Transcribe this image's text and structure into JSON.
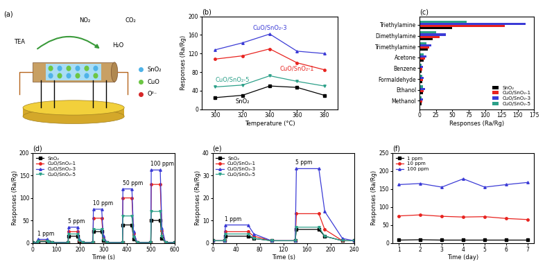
{
  "diagram": {
    "title": "(a)",
    "molecules": {
      "target": "TEA",
      "products": [
        "NO₂",
        "CO₂",
        "H₂O"
      ]
    },
    "species": [
      {
        "name": "SnO₂",
        "color": "#4fb3e8"
      },
      {
        "name": "CuO",
        "color": "#6cc644"
      },
      {
        "name": "O²⁻",
        "color": "#d62728"
      }
    ]
  },
  "chart_data": [
    {
      "type": "line",
      "title": "(b)",
      "xlabel": "Temperature (°C)",
      "ylabel": "Responses (Ra/Rg)",
      "x": [
        300,
        320,
        340,
        360,
        380
      ],
      "xlim": [
        290,
        390
      ],
      "xticks": [
        300,
        320,
        340,
        360,
        380
      ],
      "ylim": [
        0,
        200
      ],
      "yticks": [
        0,
        40,
        80,
        120,
        160,
        200
      ],
      "series": [
        {
          "name": "SnO₂",
          "color": "#000000",
          "marker": "square",
          "values": [
            25,
            30,
            50,
            47,
            30
          ]
        },
        {
          "name": "CuO/SnO₂-1",
          "color": "#e8231f",
          "marker": "circle",
          "values": [
            108,
            115,
            130,
            100,
            85
          ]
        },
        {
          "name": "CuO/SnO₂-3",
          "color": "#3b3bd6",
          "marker": "triangle_up",
          "values": [
            128,
            143,
            162,
            125,
            120
          ]
        },
        {
          "name": "CuO/SnO₂-5",
          "color": "#2ca089",
          "marker": "triangle_down",
          "values": [
            48,
            52,
            72,
            60,
            50
          ]
        }
      ]
    },
    {
      "type": "bar",
      "orientation": "horizontal",
      "title": "(c)",
      "xlabel": "Responses (Ra/Rg)",
      "categories": [
        "Methanol",
        "Ethanol",
        "Formaldehyde",
        "Benzene",
        "Acetone",
        "Trimethylamine",
        "Dimethylamine",
        "Triethylamine"
      ],
      "xlim": [
        0,
        175
      ],
      "xticks": [
        0,
        25,
        50,
        75,
        100,
        125,
        150,
        175
      ],
      "legend": "lower right",
      "series": [
        {
          "name": "SnO₂",
          "color": "#000000",
          "values": [
            3,
            5,
            4,
            3,
            6,
            12,
            20,
            50
          ]
        },
        {
          "name": "CuO/SnO₂-1",
          "color": "#e8231f",
          "values": [
            4,
            6,
            5,
            4,
            8,
            15,
            30,
            130
          ]
        },
        {
          "name": "CuO/SnO₂-3",
          "color": "#3b3bd6",
          "values": [
            5,
            8,
            6,
            5,
            10,
            18,
            40,
            162
          ]
        },
        {
          "name": "CuO/SnO₂-5",
          "color": "#2ca089",
          "values": [
            3,
            5,
            4,
            3,
            6,
            10,
            25,
            72
          ]
        }
      ]
    },
    {
      "type": "line",
      "title": "(d)",
      "xlabel": "Time (s)",
      "ylabel": "Responses (Ra/Rg)",
      "x": [
        0,
        20,
        22,
        60,
        67,
        82,
        150,
        152,
        190,
        197,
        212,
        255,
        257,
        292,
        299,
        314,
        380,
        382,
        420,
        427,
        442,
        500,
        502,
        540,
        547,
        562,
        600
      ],
      "xlim": [
        0,
        600
      ],
      "xticks": [
        0,
        100,
        200,
        300,
        400,
        500,
        600
      ],
      "ylim": [
        0,
        200
      ],
      "yticks": [
        0,
        50,
        100,
        150,
        200
      ],
      "legend": "upper left",
      "annotations": [
        {
          "text": "1 ppm",
          "x": 20
        },
        {
          "text": "5 ppm",
          "x": 150
        },
        {
          "text": "10 ppm",
          "x": 255
        },
        {
          "text": "50 ppm",
          "x": 380
        },
        {
          "text": "100 ppm",
          "x": 500
        }
      ],
      "series": [
        {
          "name": "SnO₂",
          "color": "#000000",
          "marker": "square",
          "values": [
            1,
            1,
            3,
            3,
            2,
            1,
            1,
            15,
            15,
            4,
            1,
            1,
            25,
            25,
            6,
            1,
            1,
            40,
            40,
            9,
            1,
            1,
            50,
            50,
            11,
            1,
            1
          ]
        },
        {
          "name": "CuO/SnO₂-1",
          "color": "#e8231f",
          "marker": "circle",
          "values": [
            1,
            1,
            5,
            5,
            2,
            1,
            1,
            25,
            25,
            6,
            1,
            1,
            55,
            55,
            12,
            1,
            1,
            100,
            100,
            21,
            1,
            1,
            130,
            130,
            27,
            1,
            1
          ]
        },
        {
          "name": "CuO/SnO₂-3",
          "color": "#3b3bd6",
          "marker": "triangle_up",
          "values": [
            1,
            1,
            8,
            8,
            3,
            1,
            1,
            35,
            35,
            8,
            1,
            1,
            75,
            75,
            16,
            1,
            1,
            120,
            120,
            25,
            1,
            1,
            162,
            162,
            33,
            1,
            1
          ]
        },
        {
          "name": "CuO/SnO₂-5",
          "color": "#2ca089",
          "marker": "triangle_down",
          "values": [
            1,
            1,
            4,
            4,
            2,
            1,
            1,
            20,
            20,
            5,
            1,
            1,
            30,
            30,
            7,
            1,
            1,
            60,
            60,
            13,
            1,
            1,
            70,
            70,
            15,
            1,
            1
          ]
        }
      ]
    },
    {
      "type": "line",
      "title": "(e)",
      "xlabel": "Time (s)",
      "ylabel": "Responses (Ra/Rg)",
      "x": [
        0,
        20,
        22,
        60,
        70,
        100,
        140,
        142,
        180,
        190,
        220,
        240
      ],
      "xlim": [
        0,
        240
      ],
      "xticks": [
        0,
        40,
        80,
        120,
        160,
        200,
        240
      ],
      "ylim": [
        0,
        40
      ],
      "yticks": [
        0,
        10,
        20,
        30,
        40
      ],
      "legend": "upper left",
      "annotations": [
        {
          "text": "1 ppm",
          "x": 20
        },
        {
          "text": "5 ppm",
          "x": 140
        }
      ],
      "series": [
        {
          "name": "SnO₂",
          "color": "#000000",
          "marker": "square",
          "values": [
            1,
            1,
            3,
            3,
            2,
            1,
            1,
            6,
            6,
            3,
            1,
            1
          ]
        },
        {
          "name": "CuO/SnO₂-1",
          "color": "#e8231f",
          "marker": "circle",
          "values": [
            1,
            1,
            5,
            5,
            3,
            1,
            1,
            13,
            13,
            6,
            1,
            1
          ]
        },
        {
          "name": "CuO/SnO₂-3",
          "color": "#3b3bd6",
          "marker": "triangle_up",
          "values": [
            1,
            1,
            8,
            8,
            4,
            1,
            1,
            33,
            33,
            14,
            2,
            1
          ]
        },
        {
          "name": "CuO/SnO₂-5",
          "color": "#2ca089",
          "marker": "triangle_down",
          "values": [
            1,
            1,
            4,
            4,
            2,
            1,
            1,
            7,
            7,
            3,
            1,
            1
          ]
        }
      ]
    },
    {
      "type": "line",
      "title": "(f)",
      "xlabel": "Time (day)",
      "ylabel": "Responses (Ra/Rg)",
      "x": [
        1,
        2,
        3,
        4,
        5,
        6,
        7
      ],
      "xlim": [
        0.7,
        7.3
      ],
      "xticks": [
        1,
        2,
        3,
        4,
        5,
        6,
        7
      ],
      "ylim": [
        0,
        250
      ],
      "yticks": [
        0,
        50,
        100,
        150,
        200,
        250
      ],
      "legend": "upper left",
      "series": [
        {
          "name": "1 ppm",
          "color": "#000000",
          "marker": "square",
          "values": [
            8,
            9,
            8,
            8,
            8,
            8,
            8
          ]
        },
        {
          "name": "10 ppm",
          "color": "#e8231f",
          "marker": "circle",
          "values": [
            75,
            78,
            74,
            72,
            73,
            68,
            65
          ]
        },
        {
          "name": "100 ppm",
          "color": "#3b3bd6",
          "marker": "triangle_up",
          "values": [
            162,
            165,
            155,
            178,
            155,
            162,
            168
          ]
        }
      ]
    }
  ]
}
